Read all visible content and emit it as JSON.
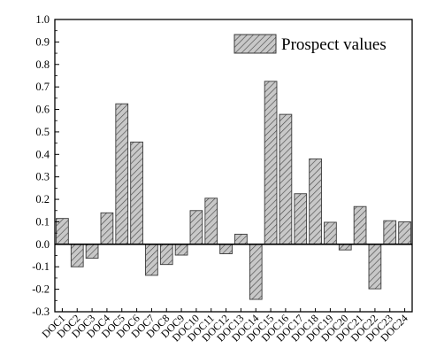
{
  "chart_data": {
    "type": "bar",
    "categories": [
      "DOC1",
      "DOC2",
      "DOC3",
      "DOC4",
      "DOC5",
      "DOC6",
      "DOC7",
      "DOC8",
      "DOC9",
      "DOC10",
      "DOC11",
      "DOC12",
      "DOC13",
      "DOC14",
      "DOC15",
      "DOC16",
      "DOC17",
      "DOC18",
      "DOC19",
      "DOC20",
      "DOC21",
      "DOC22",
      "DOC23",
      "DOC24"
    ],
    "series": [
      {
        "name": "Prospect values",
        "values": [
          0.115,
          -0.1,
          -0.062,
          0.14,
          0.625,
          0.455,
          -0.138,
          -0.09,
          -0.048,
          0.15,
          0.205,
          -0.042,
          0.045,
          -0.245,
          0.725,
          0.578,
          0.225,
          0.38,
          0.098,
          -0.025,
          0.168,
          -0.198,
          0.105,
          0.1
        ]
      }
    ],
    "ylim": [
      -0.3,
      1.0
    ],
    "yticks": [
      "-0.3",
      "-0.2",
      "-0.1",
      "0.0",
      "0.1",
      "0.2",
      "0.3",
      "0.4",
      "0.5",
      "0.6",
      "0.7",
      "0.8",
      "0.9",
      "1.0"
    ],
    "ytick_values": [
      -0.3,
      -0.2,
      -0.1,
      0.0,
      0.1,
      0.2,
      0.3,
      0.4,
      0.5,
      0.6,
      0.7,
      0.8,
      0.9,
      1.0
    ],
    "legend_position": "top-right",
    "grid": false,
    "bar_fill": "hatched",
    "colors": {
      "bar_fill": "#c8c8c8",
      "bar_stroke": "#3a3a3a",
      "hatch": "#4a4a4a",
      "axis": "#000000"
    }
  }
}
